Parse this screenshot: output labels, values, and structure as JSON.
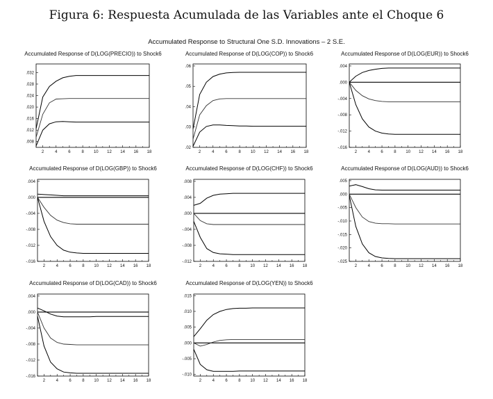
{
  "figure_title": "Figura 6: Respuesta Acumulada de las Variables ante el Choque 6",
  "subtitle": "Accumulated Response to Structural One S.D. Innovations – 2 S.E.",
  "chart_data": [
    {
      "type": "line",
      "title": "Accumulated Response of D(LOG(PRECIO)) to Shock6",
      "x_ticks": [
        "2",
        "4",
        "6",
        "8",
        "10",
        "12",
        "14",
        "16",
        "18"
      ],
      "y_ticks": [
        ".032",
        ".028",
        ".024",
        ".020",
        ".016",
        ".012",
        ".008"
      ],
      "xlim": [
        1,
        18
      ],
      "ylim": [
        0.006,
        0.035
      ],
      "x": [
        1,
        2,
        3,
        4,
        5,
        6,
        7,
        8,
        9,
        10,
        11,
        12,
        13,
        14,
        15,
        16,
        17,
        18
      ],
      "series": [
        {
          "values": [
            0.0095,
            0.0175,
            0.0215,
            0.0228,
            0.0229,
            0.023,
            0.023,
            0.023,
            0.023,
            0.023,
            0.023,
            0.023,
            0.023,
            0.023,
            0.023,
            0.023,
            0.023,
            0.023
          ]
        },
        {
          "values": [
            0.0125,
            0.0235,
            0.0272,
            0.029,
            0.0302,
            0.0307,
            0.031,
            0.031,
            0.031,
            0.031,
            0.031,
            0.031,
            0.031,
            0.031,
            0.031,
            0.031,
            0.031,
            0.031
          ]
        },
        {
          "values": [
            0.0065,
            0.012,
            0.0142,
            0.0149,
            0.015,
            0.0149,
            0.0148,
            0.0148,
            0.0148,
            0.0148,
            0.0148,
            0.0148,
            0.0148,
            0.0148,
            0.0148,
            0.0148,
            0.0148,
            0.0148
          ]
        }
      ],
      "zero_line": false
    },
    {
      "type": "line",
      "title": "Accumulated Response of D(LOG(COP)) to Shock6",
      "x_ticks": [
        "2",
        "4",
        "6",
        "8",
        "10",
        "12",
        "14",
        "16",
        "18"
      ],
      "y_ticks": [
        ".06",
        ".05",
        ".04",
        ".03",
        ".02"
      ],
      "xlim": [
        1,
        18
      ],
      "ylim": [
        0.02,
        0.061
      ],
      "x": [
        1,
        2,
        3,
        4,
        5,
        6,
        7,
        8,
        9,
        10,
        11,
        12,
        13,
        14,
        15,
        16,
        17,
        18
      ],
      "series": [
        {
          "values": [
            0.024,
            0.036,
            0.0405,
            0.043,
            0.0438,
            0.044,
            0.044,
            0.044,
            0.044,
            0.044,
            0.044,
            0.044,
            0.044,
            0.044,
            0.044,
            0.044,
            0.044,
            0.044
          ]
        },
        {
          "values": [
            0.029,
            0.046,
            0.052,
            0.0548,
            0.056,
            0.0566,
            0.0568,
            0.0569,
            0.0569,
            0.0569,
            0.0569,
            0.0569,
            0.0569,
            0.0569,
            0.0569,
            0.0569,
            0.0569,
            0.0569
          ]
        },
        {
          "values": [
            0.0205,
            0.0275,
            0.0303,
            0.031,
            0.031,
            0.0308,
            0.0307,
            0.0305,
            0.0305,
            0.0304,
            0.0304,
            0.0304,
            0.0304,
            0.0304,
            0.0304,
            0.0304,
            0.0304,
            0.0304
          ]
        }
      ],
      "zero_line": false
    },
    {
      "type": "line",
      "title": "Accumulated Response of D(LOG(EUR)) to Shock6",
      "x_ticks": [
        "2",
        "4",
        "6",
        "8",
        "10",
        "12",
        "14",
        "16",
        "18"
      ],
      "y_ticks": [
        ".004",
        ".000",
        "-.004",
        "-.008",
        "-.012",
        "-.016"
      ],
      "xlim": [
        1,
        18
      ],
      "ylim": [
        -0.016,
        0.0045
      ],
      "x": [
        1,
        2,
        3,
        4,
        5,
        6,
        7,
        8,
        9,
        10,
        11,
        12,
        13,
        14,
        15,
        16,
        17,
        18
      ],
      "series": [
        {
          "values": [
            0.0,
            -0.002,
            -0.0033,
            -0.0041,
            -0.0045,
            -0.0047,
            -0.0048,
            -0.0048,
            -0.0048,
            -0.0048,
            -0.0048,
            -0.0048,
            -0.0048,
            -0.0048,
            -0.0048,
            -0.0048,
            -0.0048,
            -0.0048
          ]
        },
        {
          "values": [
            0.0,
            0.0015,
            0.0024,
            0.0029,
            0.0032,
            0.0034,
            0.0035,
            0.0035,
            0.0035,
            0.0035,
            0.0035,
            0.0035,
            0.0035,
            0.0035,
            0.0035,
            0.0035,
            0.0035,
            0.0035
          ]
        },
        {
          "values": [
            0.0,
            -0.0055,
            -0.009,
            -0.011,
            -0.012,
            -0.0125,
            -0.0127,
            -0.0128,
            -0.0128,
            -0.0128,
            -0.0128,
            -0.0128,
            -0.0128,
            -0.0128,
            -0.0128,
            -0.0128,
            -0.0128,
            -0.0128
          ]
        }
      ],
      "zero_line": true
    },
    {
      "type": "line",
      "title": "Accumulated Response of D(LOG(GBP)) to Shock6",
      "x_ticks": [
        "2",
        "4",
        "6",
        "8",
        "10",
        "12",
        "14",
        "16",
        "18"
      ],
      "y_ticks": [
        ".004",
        ".000",
        "-.004",
        "-.008",
        "-.012",
        "-.016"
      ],
      "xlim": [
        1,
        18
      ],
      "ylim": [
        -0.016,
        0.0045
      ],
      "x": [
        1,
        2,
        3,
        4,
        5,
        6,
        7,
        8,
        9,
        10,
        11,
        12,
        13,
        14,
        15,
        16,
        17,
        18
      ],
      "series": [
        {
          "values": [
            0.0,
            -0.0025,
            -0.0045,
            -0.0057,
            -0.0063,
            -0.0066,
            -0.0067,
            -0.0067,
            -0.0067,
            -0.0067,
            -0.0067,
            -0.0067,
            -0.0067,
            -0.0067,
            -0.0067,
            -0.0067,
            -0.0067,
            -0.0067
          ]
        },
        {
          "values": [
            0.0008,
            0.0007,
            0.0006,
            0.0005,
            0.0004,
            0.0004,
            0.0004,
            0.0004,
            0.0004,
            0.0004,
            0.0004,
            0.0004,
            0.0004,
            0.0004,
            0.0004,
            0.0004,
            0.0004,
            0.0004
          ]
        },
        {
          "values": [
            0.0,
            -0.006,
            -0.0098,
            -0.012,
            -0.0132,
            -0.0137,
            -0.0139,
            -0.014,
            -0.014,
            -0.014,
            -0.014,
            -0.014,
            -0.014,
            -0.014,
            -0.014,
            -0.014,
            -0.014,
            -0.014
          ]
        }
      ],
      "zero_line": true
    },
    {
      "type": "line",
      "title": "Accumulated Response of D(LOG(CHF)) to Shock6",
      "x_ticks": [
        "2",
        "4",
        "6",
        "8",
        "10",
        "12",
        "14",
        "16",
        "18"
      ],
      "y_ticks": [
        ".008",
        ".004",
        ".000",
        "-.004",
        "-.008",
        "-.012"
      ],
      "xlim": [
        1,
        18
      ],
      "ylim": [
        -0.012,
        0.0085
      ],
      "x": [
        1,
        2,
        3,
        4,
        5,
        6,
        7,
        8,
        9,
        10,
        11,
        12,
        13,
        14,
        15,
        16,
        17,
        18
      ],
      "series": [
        {
          "values": [
            0.0,
            -0.0018,
            -0.0026,
            -0.0028,
            -0.0028,
            -0.0028,
            -0.0028,
            -0.0028,
            -0.0028,
            -0.0028,
            -0.0028,
            -0.0028,
            -0.0028,
            -0.0028,
            -0.0028,
            -0.0028,
            -0.0028,
            -0.0028
          ]
        },
        {
          "values": [
            0.002,
            0.0025,
            0.0038,
            0.0045,
            0.0048,
            0.0049,
            0.005,
            0.005,
            0.005,
            0.005,
            0.005,
            0.005,
            0.005,
            0.005,
            0.005,
            0.005,
            0.005,
            0.005
          ]
        },
        {
          "values": [
            -0.002,
            -0.006,
            -0.0088,
            -0.0098,
            -0.0101,
            -0.0102,
            -0.0103,
            -0.0103,
            -0.0103,
            -0.0103,
            -0.0103,
            -0.0103,
            -0.0103,
            -0.0103,
            -0.0103,
            -0.0103,
            -0.0103,
            -0.0103
          ]
        }
      ],
      "zero_line": true
    },
    {
      "type": "line",
      "title": "Accumulated Response of D(LOG(AUD)) to Shock6",
      "x_ticks": [
        "2",
        "4",
        "6",
        "8",
        "10",
        "12",
        "14",
        "16",
        "18"
      ],
      "y_ticks": [
        ".005",
        ".000",
        "-.005",
        "-.010",
        "-.015",
        "-.020",
        "-.025"
      ],
      "xlim": [
        1,
        18
      ],
      "ylim": [
        -0.025,
        0.0055
      ],
      "x": [
        1,
        2,
        3,
        4,
        5,
        6,
        7,
        8,
        9,
        10,
        11,
        12,
        13,
        14,
        15,
        16,
        17,
        18
      ],
      "series": [
        {
          "values": [
            0.0,
            -0.005,
            -0.0085,
            -0.0102,
            -0.0108,
            -0.011,
            -0.011,
            -0.0111,
            -0.0111,
            -0.0111,
            -0.0111,
            -0.0111,
            -0.0111,
            -0.0111,
            -0.0111,
            -0.0111,
            -0.0111,
            -0.0111
          ]
        },
        {
          "values": [
            0.003,
            0.0035,
            0.0028,
            0.002,
            0.0016,
            0.0015,
            0.0015,
            0.0015,
            0.0015,
            0.0015,
            0.0015,
            0.0015,
            0.0015,
            0.0015,
            0.0015,
            0.0015,
            0.0015,
            0.0015
          ]
        },
        {
          "values": [
            -0.0005,
            -0.012,
            -0.0185,
            -0.0218,
            -0.0232,
            -0.0237,
            -0.0239,
            -0.024,
            -0.024,
            -0.024,
            -0.024,
            -0.024,
            -0.024,
            -0.024,
            -0.024,
            -0.024,
            -0.024,
            -0.024
          ]
        }
      ],
      "zero_line": true
    },
    {
      "type": "line",
      "title": "Accumulated Response of D(LOG(CAD)) to Shock6",
      "x_ticks": [
        "2",
        "4",
        "6",
        "8",
        "10",
        "12",
        "14",
        "16",
        "18"
      ],
      "y_ticks": [
        ".004",
        ".000",
        "-.004",
        "-.008",
        "-.012",
        "-.016"
      ],
      "xlim": [
        1,
        18
      ],
      "ylim": [
        -0.016,
        0.0045
      ],
      "x": [
        1,
        2,
        3,
        4,
        5,
        6,
        7,
        8,
        9,
        10,
        11,
        12,
        13,
        14,
        15,
        16,
        17,
        18
      ],
      "series": [
        {
          "values": [
            0.0,
            -0.004,
            -0.0065,
            -0.0076,
            -0.008,
            -0.0081,
            -0.0082,
            -0.0082,
            -0.0082,
            -0.0082,
            -0.0082,
            -0.0082,
            -0.0082,
            -0.0082,
            -0.0082,
            -0.0082,
            -0.0082,
            -0.0082
          ]
        },
        {
          "values": [
            0.001,
            0.0003,
            -0.0005,
            -0.001,
            -0.0012,
            -0.0012,
            -0.0012,
            -0.0012,
            -0.0012,
            -0.0011,
            -0.0011,
            -0.0011,
            -0.0011,
            -0.0011,
            -0.0011,
            -0.0011,
            -0.0011,
            -0.0011
          ]
        },
        {
          "values": [
            -0.001,
            -0.0085,
            -0.0125,
            -0.0142,
            -0.015,
            -0.0152,
            -0.0153,
            -0.0153,
            -0.0153,
            -0.0153,
            -0.0153,
            -0.0153,
            -0.0153,
            -0.0153,
            -0.0153,
            -0.0153,
            -0.0153,
            -0.0153
          ]
        }
      ],
      "zero_line": true
    },
    {
      "type": "line",
      "title": "Accumulated Response of D(LOG(YEN)) to Shock6",
      "x_ticks": [
        "2",
        "4",
        "6",
        "8",
        "10",
        "12",
        "14",
        "16",
        "18"
      ],
      "y_ticks": [
        ".015",
        ".010",
        ".005",
        ".000",
        "-.005",
        "-.010"
      ],
      "xlim": [
        1,
        18
      ],
      "ylim": [
        -0.0105,
        0.0155
      ],
      "x": [
        1,
        2,
        3,
        4,
        5,
        6,
        7,
        8,
        9,
        10,
        11,
        12,
        13,
        14,
        15,
        16,
        17,
        18
      ],
      "series": [
        {
          "values": [
            0.0,
            -0.001,
            -0.0005,
            0.0003,
            0.0008,
            0.001,
            0.0011,
            0.0011,
            0.0011,
            0.0011,
            0.0011,
            0.0011,
            0.0011,
            0.0011,
            0.0011,
            0.0011,
            0.0011,
            0.0011
          ]
        },
        {
          "values": [
            0.002,
            0.0045,
            0.0072,
            0.009,
            0.01,
            0.0106,
            0.0109,
            0.011,
            0.011,
            0.0111,
            0.0111,
            0.0111,
            0.0111,
            0.0111,
            0.0111,
            0.0111,
            0.0111,
            0.0111
          ]
        },
        {
          "values": [
            -0.002,
            -0.0068,
            -0.0085,
            -0.009,
            -0.009,
            -0.009,
            -0.009,
            -0.0089,
            -0.0089,
            -0.0089,
            -0.0089,
            -0.0089,
            -0.0089,
            -0.0089,
            -0.0089,
            -0.0089,
            -0.0089,
            -0.0089
          ]
        }
      ],
      "zero_line": true
    }
  ]
}
